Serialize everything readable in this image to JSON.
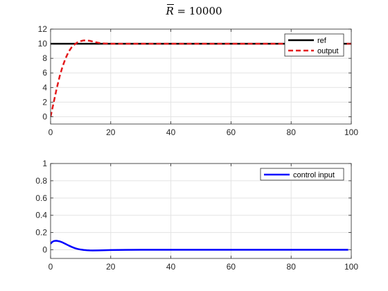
{
  "figure": {
    "title_symbol": "R",
    "title_rest": " = 10000"
  },
  "chart_data": [
    {
      "type": "line",
      "title": "R̄ = 10000",
      "xlabel": "",
      "ylabel": "",
      "xlim": [
        0,
        100
      ],
      "ylim": [
        -1,
        12
      ],
      "xticks": [
        0,
        20,
        40,
        60,
        80,
        100
      ],
      "yticks": [
        0,
        2,
        4,
        6,
        8,
        10,
        12
      ],
      "grid": true,
      "legend_position": "top-right",
      "series": [
        {
          "name": "ref",
          "color": "#000000",
          "style": "solid",
          "x": [
            0,
            100
          ],
          "y": [
            10,
            10
          ]
        },
        {
          "name": "output",
          "color": "#e31a1c",
          "style": "dashed",
          "x": [
            0,
            1,
            2,
            3,
            4,
            5,
            6,
            7,
            8,
            9,
            10,
            11,
            12,
            13,
            14,
            15,
            16,
            17,
            18,
            20,
            25,
            30,
            40,
            50,
            60,
            70,
            80,
            90,
            100
          ],
          "y": [
            0,
            1.9,
            3.8,
            5.5,
            6.9,
            8.0,
            8.9,
            9.5,
            9.9,
            10.2,
            10.35,
            10.45,
            10.45,
            10.4,
            10.3,
            10.2,
            10.12,
            10.06,
            10.03,
            10.0,
            10.0,
            10.0,
            10.0,
            10.0,
            10.0,
            10.0,
            10.0,
            10.0,
            10.0
          ]
        }
      ]
    },
    {
      "type": "line",
      "xlabel": "",
      "ylabel": "",
      "xlim": [
        0,
        100
      ],
      "ylim": [
        -0.1,
        1
      ],
      "xticks": [
        0,
        20,
        40,
        60,
        80,
        100
      ],
      "yticks": [
        0,
        0.2,
        0.4,
        0.6,
        0.8,
        1
      ],
      "grid": true,
      "legend_position": "top-right",
      "series": [
        {
          "name": "control input",
          "color": "#0000ff",
          "style": "solid",
          "x": [
            0,
            0.5,
            1,
            1.5,
            2,
            3,
            4,
            5,
            6,
            7,
            8,
            9,
            10,
            11,
            12,
            13,
            14,
            16,
            18,
            20,
            25,
            30,
            40,
            50,
            60,
            70,
            80,
            90,
            99
          ],
          "y": [
            0.07,
            0.09,
            0.1,
            0.104,
            0.105,
            0.098,
            0.085,
            0.068,
            0.05,
            0.034,
            0.02,
            0.01,
            0.003,
            -0.002,
            -0.005,
            -0.007,
            -0.008,
            -0.007,
            -0.005,
            -0.003,
            -0.001,
            0.0,
            0.0,
            0.0,
            0.0,
            0.0,
            0.0,
            0.0,
            0.0
          ]
        }
      ]
    }
  ]
}
